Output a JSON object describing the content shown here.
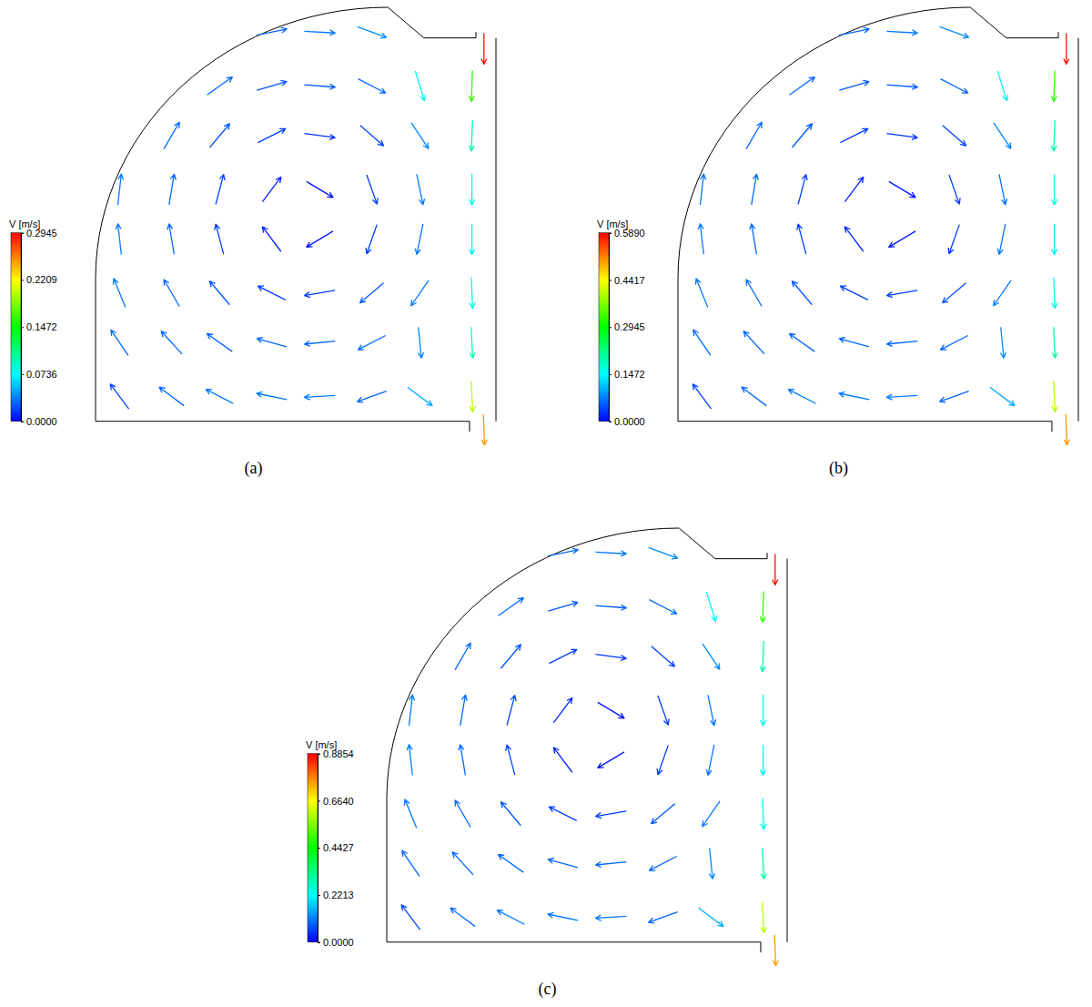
{
  "chart_data": [
    {
      "type": "vector",
      "title": "(a)",
      "xlim": [
        0,
        1
      ],
      "ylim": [
        -0.06,
        1
      ],
      "tick_labels": false,
      "x": [
        0.44,
        0.56,
        0.69,
        0.31,
        0.44,
        0.56,
        0.69,
        0.81,
        0.94,
        0.19,
        0.31,
        0.44,
        0.56,
        0.69,
        0.81,
        0.94,
        0.06,
        0.19,
        0.31,
        0.44,
        0.56,
        0.69,
        0.81,
        0.94,
        0.06,
        0.19,
        0.31,
        0.44,
        0.56,
        0.69,
        0.81,
        0.94,
        0.06,
        0.19,
        0.31,
        0.44,
        0.56,
        0.69,
        0.81,
        0.94,
        0.06,
        0.19,
        0.31,
        0.44,
        0.56,
        0.69,
        0.81,
        0.94,
        0.06,
        0.19,
        0.31,
        0.44,
        0.56,
        0.69,
        0.81,
        0.94,
        0.97,
        0.97
      ],
      "y": [
        0.94,
        0.94,
        0.94,
        0.81,
        0.81,
        0.81,
        0.81,
        0.81,
        0.81,
        0.69,
        0.69,
        0.69,
        0.69,
        0.69,
        0.69,
        0.69,
        0.56,
        0.56,
        0.56,
        0.56,
        0.56,
        0.56,
        0.56,
        0.56,
        0.44,
        0.44,
        0.44,
        0.44,
        0.44,
        0.44,
        0.44,
        0.44,
        0.31,
        0.31,
        0.31,
        0.31,
        0.31,
        0.31,
        0.31,
        0.31,
        0.19,
        0.19,
        0.19,
        0.19,
        0.19,
        0.19,
        0.19,
        0.19,
        0.06,
        0.06,
        0.06,
        0.06,
        0.06,
        0.06,
        0.06,
        0.06,
        0.9,
        -0.02
      ],
      "u": [
        0.029,
        0.035,
        0.038,
        0.024,
        0.024,
        0.025,
        0.027,
        0.021,
        -0.005,
        0.015,
        0.016,
        0.016,
        0.015,
        0.015,
        0.022,
        -0.004,
        0.004,
        0.005,
        0.005,
        0.006,
        0.005,
        0.006,
        0.007,
        0,
        -0.004,
        -0.005,
        -0.005,
        -0.006,
        -0.005,
        -0.006,
        -0.007,
        0,
        -0.013,
        -0.015,
        -0.016,
        -0.016,
        -0.018,
        -0.019,
        -0.02,
        0.003,
        -0.017,
        -0.02,
        -0.024,
        -0.029,
        -0.03,
        -0.027,
        0.004,
        0.005,
        -0.012,
        -0.024,
        -0.031,
        -0.034,
        -0.035,
        -0.028,
        0.04,
        0.01,
        0,
        0.01
      ],
      "v": [
        0.006,
        -0.002,
        -0.014,
        0.017,
        0.007,
        -0.002,
        -0.014,
        -0.067,
        -0.16,
        0.026,
        0.019,
        0.008,
        -0.002,
        -0.013,
        -0.033,
        -0.1,
        0.035,
        0.03,
        0.019,
        0.008,
        -0.003,
        -0.017,
        -0.034,
        -0.08,
        0.035,
        0.03,
        0.019,
        0.008,
        -0.003,
        -0.017,
        -0.034,
        -0.07,
        0.032,
        0.026,
        0.019,
        0.008,
        -0.003,
        -0.016,
        -0.029,
        -0.08,
        0.025,
        0.022,
        0.017,
        0.008,
        -0.003,
        -0.014,
        -0.04,
        -0.1,
        0.016,
        0.018,
        0.016,
        0.007,
        -0.002,
        -0.01,
        -0.03,
        -0.2,
        -0.29,
        -0.25
      ],
      "colorbar": {
        "label": "V [m/s]",
        "range": [
          0,
          0.2945
        ],
        "ticks": [
          {
            "value": 0,
            "label": "0.0000"
          },
          0.0736,
          0.1472,
          0.2209,
          0.2945
        ]
      }
    },
    {
      "type": "vector",
      "title": "(b)",
      "xlim": [
        0,
        1
      ],
      "ylim": [
        -0.06,
        1
      ],
      "tick_labels": false,
      "x": [
        0.44,
        0.56,
        0.69,
        0.31,
        0.44,
        0.56,
        0.69,
        0.81,
        0.94,
        0.19,
        0.31,
        0.44,
        0.56,
        0.69,
        0.81,
        0.94,
        0.06,
        0.19,
        0.31,
        0.44,
        0.56,
        0.69,
        0.81,
        0.94,
        0.06,
        0.19,
        0.31,
        0.44,
        0.56,
        0.69,
        0.81,
        0.94,
        0.06,
        0.19,
        0.31,
        0.44,
        0.56,
        0.69,
        0.81,
        0.94,
        0.06,
        0.19,
        0.31,
        0.44,
        0.56,
        0.69,
        0.81,
        0.94,
        0.06,
        0.19,
        0.31,
        0.44,
        0.56,
        0.69,
        0.81,
        0.94,
        0.97,
        0.97
      ],
      "y": [
        0.94,
        0.94,
        0.94,
        0.81,
        0.81,
        0.81,
        0.81,
        0.81,
        0.81,
        0.69,
        0.69,
        0.69,
        0.69,
        0.69,
        0.69,
        0.69,
        0.56,
        0.56,
        0.56,
        0.56,
        0.56,
        0.56,
        0.56,
        0.56,
        0.44,
        0.44,
        0.44,
        0.44,
        0.44,
        0.44,
        0.44,
        0.44,
        0.31,
        0.31,
        0.31,
        0.31,
        0.31,
        0.31,
        0.31,
        0.31,
        0.19,
        0.19,
        0.19,
        0.19,
        0.19,
        0.19,
        0.19,
        0.19,
        0.06,
        0.06,
        0.06,
        0.06,
        0.06,
        0.06,
        0.06,
        0.06,
        0.9,
        -0.02
      ],
      "u": [
        0.058,
        0.07,
        0.076,
        0.048,
        0.048,
        0.05,
        0.054,
        0.042,
        -0.01,
        0.03,
        0.032,
        0.032,
        0.03,
        0.03,
        0.044,
        -0.008,
        0.008,
        0.01,
        0.01,
        0.012,
        0.01,
        0.012,
        0.014,
        0,
        -0.008,
        -0.01,
        -0.01,
        -0.012,
        -0.01,
        -0.012,
        -0.014,
        0,
        -0.026,
        -0.03,
        -0.032,
        -0.032,
        -0.036,
        -0.038,
        -0.04,
        0.006,
        -0.034,
        -0.04,
        -0.048,
        -0.058,
        -0.06,
        -0.054,
        0.008,
        0.01,
        -0.024,
        -0.048,
        -0.062,
        -0.068,
        -0.07,
        -0.056,
        0.08,
        0.02,
        0,
        0.02
      ],
      "v": [
        0.012,
        -0.004,
        -0.028,
        0.034,
        0.014,
        -0.004,
        -0.028,
        -0.134,
        -0.32,
        0.052,
        0.038,
        0.016,
        -0.004,
        -0.026,
        -0.066,
        -0.2,
        0.07,
        0.06,
        0.038,
        0.016,
        -0.006,
        -0.034,
        -0.068,
        -0.16,
        0.07,
        0.06,
        0.038,
        0.016,
        -0.006,
        -0.034,
        -0.068,
        -0.14,
        0.064,
        0.052,
        0.038,
        0.016,
        -0.006,
        -0.032,
        -0.058,
        -0.16,
        0.05,
        0.044,
        0.034,
        0.016,
        -0.006,
        -0.028,
        -0.08,
        -0.2,
        0.032,
        0.036,
        0.032,
        0.014,
        -0.004,
        -0.02,
        -0.06,
        -0.4,
        -0.58,
        -0.5
      ],
      "colorbar": {
        "label": "V [m/s]",
        "range": [
          0,
          0.589
        ],
        "ticks": [
          {
            "value": 0,
            "label": "0.0000"
          },
          0.1472,
          0.2945,
          0.4417,
          {
            "value": 0.589,
            "label": "0.5890"
          }
        ]
      }
    },
    {
      "type": "vector",
      "title": "(c)",
      "xlim": [
        0,
        1
      ],
      "ylim": [
        -0.06,
        1
      ],
      "tick_labels": false,
      "x": [
        0.44,
        0.56,
        0.69,
        0.31,
        0.44,
        0.56,
        0.69,
        0.81,
        0.94,
        0.19,
        0.31,
        0.44,
        0.56,
        0.69,
        0.81,
        0.94,
        0.06,
        0.19,
        0.31,
        0.44,
        0.56,
        0.69,
        0.81,
        0.94,
        0.06,
        0.19,
        0.31,
        0.44,
        0.56,
        0.69,
        0.81,
        0.94,
        0.06,
        0.19,
        0.31,
        0.44,
        0.56,
        0.69,
        0.81,
        0.94,
        0.06,
        0.19,
        0.31,
        0.44,
        0.56,
        0.69,
        0.81,
        0.94,
        0.06,
        0.19,
        0.31,
        0.44,
        0.56,
        0.69,
        0.81,
        0.94,
        0.97,
        0.97
      ],
      "y": [
        0.94,
        0.94,
        0.94,
        0.81,
        0.81,
        0.81,
        0.81,
        0.81,
        0.81,
        0.69,
        0.69,
        0.69,
        0.69,
        0.69,
        0.69,
        0.69,
        0.56,
        0.56,
        0.56,
        0.56,
        0.56,
        0.56,
        0.56,
        0.56,
        0.44,
        0.44,
        0.44,
        0.44,
        0.44,
        0.44,
        0.44,
        0.44,
        0.31,
        0.31,
        0.31,
        0.31,
        0.31,
        0.31,
        0.31,
        0.31,
        0.19,
        0.19,
        0.19,
        0.19,
        0.19,
        0.19,
        0.19,
        0.19,
        0.06,
        0.06,
        0.06,
        0.06,
        0.06,
        0.06,
        0.06,
        0.06,
        0.9,
        -0.02
      ],
      "u": [
        0.087,
        0.105,
        0.114,
        0.072,
        0.072,
        0.075,
        0.081,
        0.063,
        -0.015,
        0.045,
        0.048,
        0.048,
        0.045,
        0.045,
        0.066,
        -0.012,
        0.012,
        0.015,
        0.015,
        0.018,
        0.015,
        0.018,
        0.021,
        0,
        -0.012,
        -0.015,
        -0.015,
        -0.018,
        -0.015,
        -0.018,
        -0.021,
        0,
        -0.039,
        -0.045,
        -0.048,
        -0.048,
        -0.054,
        -0.057,
        -0.06,
        0.009,
        -0.051,
        -0.06,
        -0.072,
        -0.087,
        -0.09,
        -0.081,
        0.012,
        0.015,
        -0.036,
        -0.072,
        -0.093,
        -0.102,
        -0.105,
        -0.084,
        0.12,
        0.03,
        0,
        0.03
      ],
      "v": [
        0.018,
        -0.006,
        -0.042,
        0.051,
        0.021,
        -0.006,
        -0.042,
        -0.201,
        -0.48,
        0.078,
        0.057,
        0.024,
        -0.006,
        -0.039,
        -0.099,
        -0.3,
        0.105,
        0.09,
        0.057,
        0.024,
        -0.009,
        -0.051,
        -0.102,
        -0.24,
        0.105,
        0.09,
        0.057,
        0.024,
        -0.009,
        -0.051,
        -0.102,
        -0.21,
        0.096,
        0.078,
        0.057,
        0.024,
        -0.009,
        -0.048,
        -0.087,
        -0.24,
        0.075,
        0.066,
        0.051,
        0.024,
        -0.009,
        -0.042,
        -0.12,
        -0.3,
        0.048,
        0.054,
        0.048,
        0.021,
        -0.006,
        -0.03,
        -0.09,
        -0.6,
        -0.87,
        -0.75
      ],
      "colorbar": {
        "label": "V [m/s]",
        "range": [
          0,
          0.8854
        ],
        "ticks": [
          {
            "value": 0,
            "label": "0.0000"
          },
          0.2213,
          0.4427,
          {
            "value": 0.664,
            "label": "0.6640"
          },
          0.8854
        ]
      }
    }
  ]
}
